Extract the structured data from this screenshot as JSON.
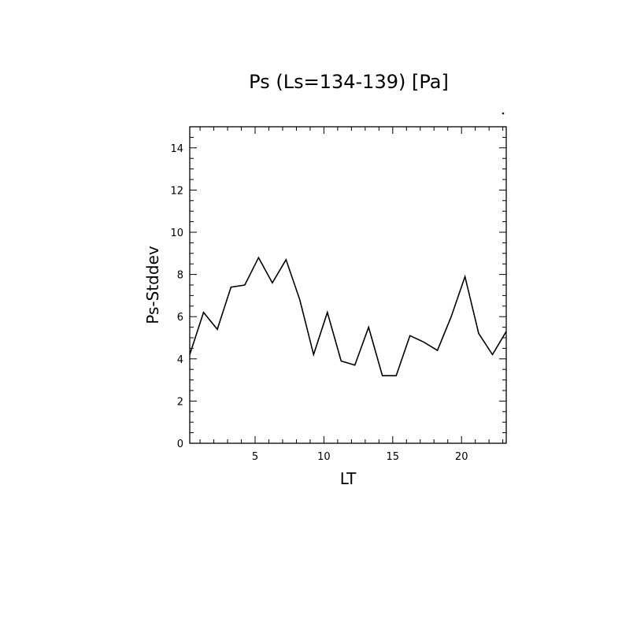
{
  "chart_data": {
    "type": "line",
    "title": "Ps (Ls=134-139) [Pa]",
    "xlabel": "LT",
    "ylabel": "Ps-Stddev",
    "xlim": [
      0.25,
      23.25
    ],
    "ylim": [
      0,
      15
    ],
    "xticks": [
      5,
      10,
      15,
      20
    ],
    "yticks": [
      0,
      2,
      4,
      6,
      8,
      10,
      12,
      14
    ],
    "grid": false,
    "series": [
      {
        "x": [
          0.25,
          1.25,
          2.25,
          3.25,
          4.25,
          5.25,
          6.25,
          7.25,
          8.25,
          9.25,
          10.25,
          11.25,
          12.25,
          13.25,
          14.25,
          15.25,
          16.25,
          17.25,
          18.25,
          19.25,
          20.25,
          21.25,
          22.25,
          23.25
        ],
        "values": [
          4.2,
          6.2,
          5.4,
          7.4,
          7.5,
          8.8,
          7.6,
          8.7,
          6.8,
          4.2,
          6.2,
          3.9,
          3.7,
          5.5,
          3.2,
          3.2,
          5.1,
          4.8,
          4.4,
          6.0,
          7.9,
          5.2,
          4.2,
          5.3
        ],
        "color": "#000000"
      }
    ]
  }
}
